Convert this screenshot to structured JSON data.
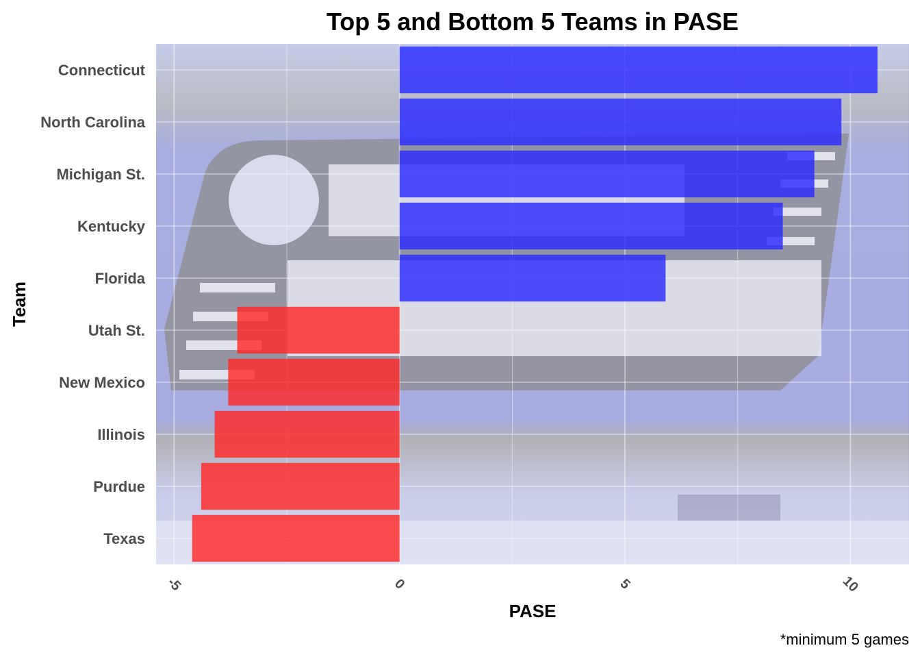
{
  "chart_data": {
    "type": "bar",
    "orientation": "horizontal",
    "title": "Top 5 and Bottom 5 Teams in PASE",
    "xlabel": "PASE",
    "ylabel": "Team",
    "caption": "*minimum 5 games",
    "background_image": "March Madness logo photo",
    "xlim": [
      -5.4,
      11.3
    ],
    "xticks": [
      -5,
      0,
      5,
      10
    ],
    "grid": true,
    "legend": "none",
    "categories": [
      "Connecticut",
      "North Carolina",
      "Michigan St.",
      "Kentucky",
      "Florida",
      "Utah St.",
      "New Mexico",
      "Illinois",
      "Purdue",
      "Texas"
    ],
    "values": [
      10.6,
      9.8,
      9.2,
      8.5,
      5.9,
      -3.6,
      -3.8,
      -4.1,
      -4.4,
      -4.6
    ],
    "colors": {
      "positive": "#2b2bff",
      "negative": "#ff2a2a"
    }
  }
}
